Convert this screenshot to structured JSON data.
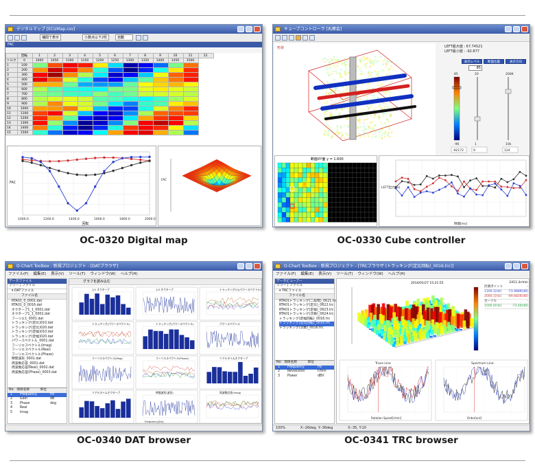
{
  "captions": {
    "s1": "OC-0320 Digital map",
    "s2": "OC-0330 Cube controller",
    "s3": "OC-0340 DAT browser",
    "s4": "OC-0341 TRC browser"
  },
  "shot1": {
    "title": "デジタルマップ [ECUMap.csv]",
    "toolbar_label": "補間で表示",
    "select_value": "小数点以下2桁",
    "select2_value": "自動",
    "fac_label": "FAC",
    "axis_head": "回転",
    "row_head": "トルク",
    "col_index": [
      "0",
      "1",
      "2",
      "3",
      "4",
      "5",
      "6",
      "7",
      "8",
      "9",
      "10",
      "11",
      "12"
    ],
    "columns": [
      "1000",
      "1050",
      "1100",
      "1150",
      "1200",
      "1250",
      "1300",
      "1350",
      "1400",
      "1450",
      "1500"
    ],
    "rows": [
      "100",
      "200",
      "300",
      "400",
      "500",
      "600",
      "700",
      "800",
      "900",
      "1000",
      "1100",
      "1200",
      "1300",
      "1400",
      "1500"
    ],
    "line_ylabel": "FAC",
    "line_xlabel": "回転",
    "line_xticks": [
      "1000.0",
      "1200.0",
      "1400.0",
      "1600.0",
      "1800.0",
      "2000.0"
    ],
    "surface_ylabel": "FAC"
  },
  "shot2": {
    "title": "キューブコントローラ [丸棒会]",
    "label_left": "形状",
    "readout1": "LEFT最大値 : 67.74521",
    "readout2": "LEFT最小値 : -92.877",
    "btn1": "表示レベル",
    "btn2": "断面位置",
    "btn3": "表示方向",
    "value_box": "85",
    "bar_labels": [
      "85",
      "20",
      "200K"
    ],
    "bar_bottom": [
      "-96",
      "1",
      "10k"
    ],
    "bar_values": [
      "-92172",
      "9",
      "124"
    ],
    "grid_title": "断面XY面 y = 1.600",
    "chart_ylabel": "LEFT出力(%)",
    "chart_xlabel": "時間[ms]"
  },
  "shot3": {
    "title": "O-Chart Toolbox : 新規プロジェクト - [DATブラウザ]",
    "menu": [
      "ファイル(F)",
      "編集(E)",
      "表示(V)",
      "ツール(T)",
      "ウィンドウ(W)",
      "ヘルプ(H)"
    ],
    "pane_title": "データファイル",
    "side_tabs": [
      "ツリー",
      "ファイル"
    ],
    "tree_root": "DATファイル",
    "file_col": "ファイル名",
    "files": [
      "RTA01_0_0001.dat",
      "RTA01_0_0016.dat",
      "オクターブ1_1_0001.dat",
      "オクターブ1_1_0002.dat",
      "フーリエ1_0001.dat",
      "トラッキング(定比)010.dat",
      "トラッキング(定比)020.dat",
      "トラッキング(定幅)010.dat",
      "トラッキング(定幅)020.dat",
      "パワースペクトル_0001.dat",
      "フーリエスペクトル(Imag)",
      "フーリエスペクトル(Real)",
      "フーリエスペクトル(Phase)",
      "時間波形_0001.dat",
      "周波数応答_0001.dat",
      "周波数応答(Real)_0002.dat",
      "周波数応答(Phase)_0003.dat"
    ],
    "prop_cols": [
      "No.",
      "項目名称",
      "単位"
    ],
    "props": [
      [
        "1",
        "Frequency",
        "Hz"
      ],
      [
        "2",
        "Gain",
        "dB"
      ],
      [
        "3",
        "Phase",
        "deg"
      ],
      [
        "4",
        "Real",
        ""
      ],
      [
        "5",
        "Imag",
        ""
      ]
    ],
    "graph_toolbar": "グラフを読み込む",
    "chart_titles": [
      "1/1 オクターブ",
      "1/3 オクターブ",
      "トラッキング(Y)(パワースペクトル)",
      "トラッキング(パワースペクトル)",
      "トラッキング(パワースペクトル)",
      "パワースペクトル",
      "フーリエスペクトル(Mag)",
      "フーリエスペクトル(Phase)",
      "リアルタイムオクターブ",
      "リアルタイムオクターブ",
      "時間波形(波形)",
      "周波数応答(Imag)"
    ],
    "freq_label": "Frequency[Hz]"
  },
  "shot4": {
    "title": "O-Chart Toolbox : 新規プロジェクト - [TRCブラウザ (トラッキング(定比回転)_0016.trc)]",
    "menu": [
      "ファイル(F)",
      "編集(E)",
      "表示(V)",
      "ツール(T)",
      "ウィンドウ(W)",
      "ヘルプ(H)"
    ],
    "pane_title": "データビューアー",
    "side_tabs": [
      "ツリー",
      "ファイル"
    ],
    "tree_root": "TRCファイル",
    "file_col": "ファイル名",
    "files": [
      "RTA01トラッキング(二段階)_0621.trc",
      "RTA01トラッキング(定比)_0622.trc",
      "RTA01トラッキング(定幅)_0623.trc",
      "RTA01トラッキング(次数)_0624.trc",
      "トラッキング(定幅回転)_0016.trc",
      "トラッキング(定比回転)_0016.trc",
      "トラッキング(次数)_0016.trc"
    ],
    "prop_cols": [
      "No.",
      "項目名称",
      "単位"
    ],
    "props": [
      [
        "1",
        "Frequency",
        "Hz"
      ],
      [
        "2",
        "Revolution",
        "r/min"
      ],
      [
        "3",
        "Power",
        "dBV"
      ]
    ],
    "surf_date": "2014/01/27 15:21:55",
    "panel_title": "2411.3r/min",
    "panel_rows": [
      "計測ポイント",
      "1100.1[Hz]",
      "2000.1[Hz]",
      "カーソル",
      "1500.0[Hz]"
    ],
    "panel_vals": [
      "-",
      "-73.9889[dB]",
      "-69.6826[dB]",
      "-",
      "-73.40[dB]"
    ],
    "trace_title": "Trace Line",
    "spectrum_title": "Spectrum Line",
    "trace_x": "Rotation Speed[r/min]",
    "spectrum_x": "Order[ord]",
    "status_zoom": "100%",
    "status_a": "X:-26deg, Y:-36deg",
    "status_b": "X:-35, Y:10"
  },
  "colors": {
    "title_bar": "#3a5aa8",
    "cube_red": "#d42020",
    "cube_blue": "#1030c0",
    "line_blue": "#2a3fd0",
    "line_red": "#d03030"
  }
}
